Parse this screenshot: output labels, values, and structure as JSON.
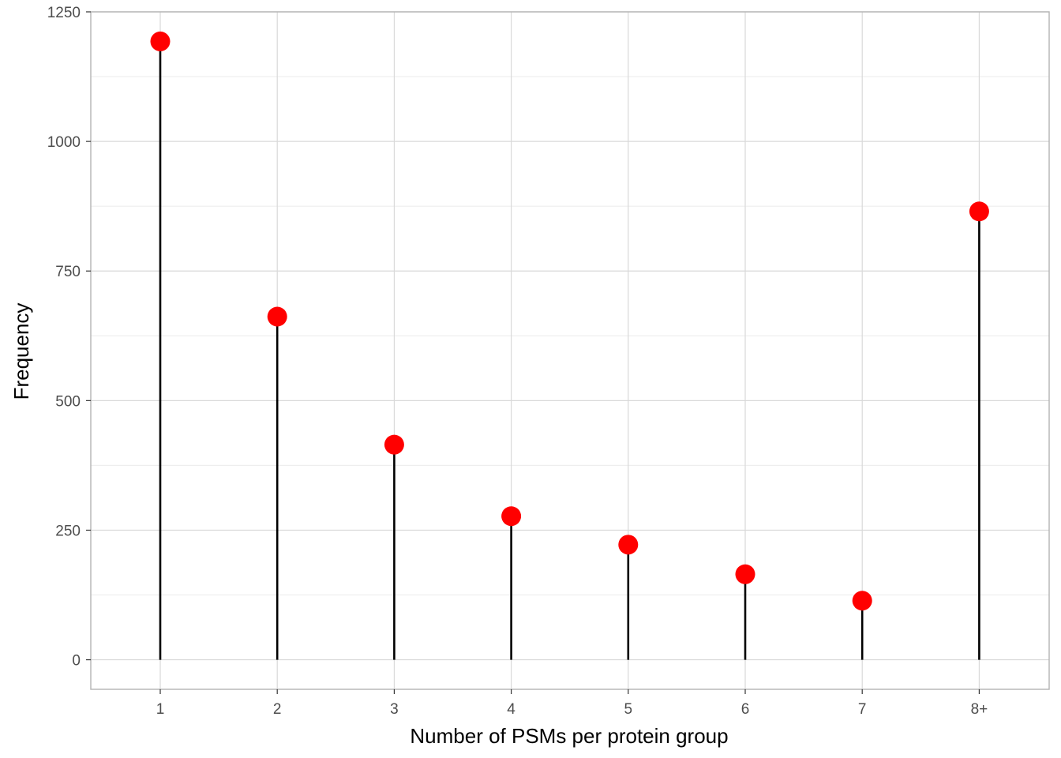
{
  "chart_data": {
    "type": "lollipop",
    "title": "",
    "xlabel": "Number of PSMs per protein group",
    "ylabel": "Frequency",
    "categories": [
      "1",
      "2",
      "3",
      "4",
      "5",
      "6",
      "7",
      "8+"
    ],
    "values": [
      1193,
      662,
      415,
      277,
      222,
      165,
      114,
      865
    ],
    "ylim": [
      -57,
      1250
    ],
    "yticks": [
      0,
      250,
      500,
      750,
      1000,
      1250
    ],
    "grid": true,
    "legend": "none",
    "colors": {
      "point": "#ff0000",
      "stem": "#000000",
      "grid_major": "#d9d9d9",
      "grid_minor": "#ebebeb",
      "panel_border": "#b3b3b3"
    }
  }
}
